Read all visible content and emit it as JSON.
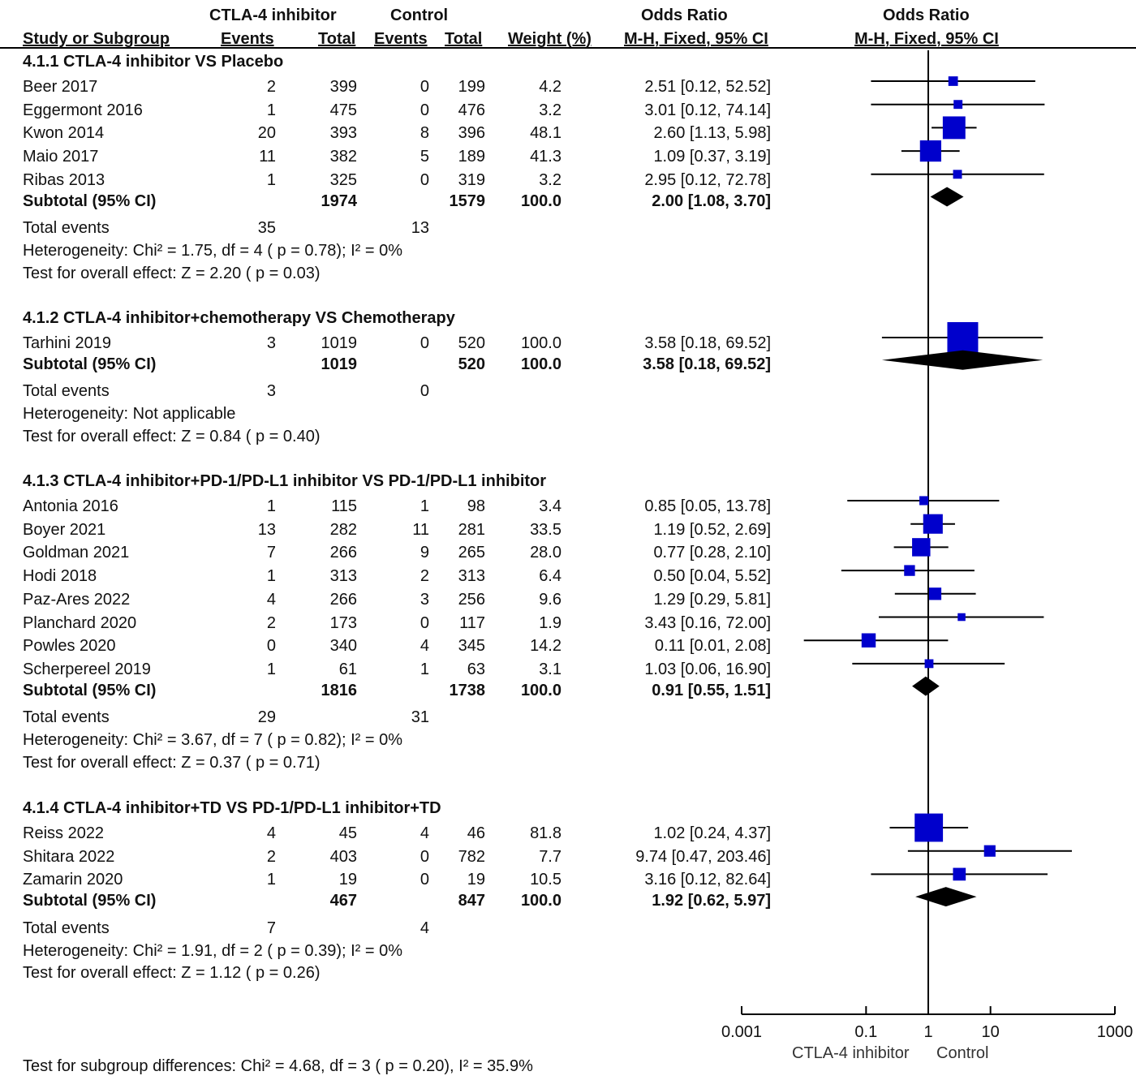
{
  "header": {
    "exp_group": "CTLA-4 inhibitor",
    "ctrl_group": "Control",
    "or_title": "Odds Ratio",
    "or_title_plot": "Odds Ratio",
    "col_study": "Study or Subgroup",
    "col_exp_events": "Events",
    "col_exp_total": "Total",
    "col_ctrl_events": "Events",
    "col_ctrl_total": "Total",
    "col_weight": "Weight (%)",
    "col_method": "M-H, Fixed, 95% CI",
    "col_method_plot": "M-H, Fixed, 95% CI"
  },
  "subgroups": [
    {
      "title": "4.1.1 CTLA-4 inhibitor VS Placebo",
      "studies": [
        {
          "name": "Beer 2017",
          "ee": "2",
          "et": "399",
          "ce": "0",
          "ct": "199",
          "w": "4.2",
          "ci": "2.51 [0.12, 52.52]"
        },
        {
          "name": "Eggermont 2016",
          "ee": "1",
          "et": "475",
          "ce": "0",
          "ct": "476",
          "w": "3.2",
          "ci": "3.01 [0.12, 74.14]"
        },
        {
          "name": "Kwon 2014",
          "ee": "20",
          "et": "393",
          "ce": "8",
          "ct": "396",
          "w": "48.1",
          "ci": "2.60 [1.13, 5.98]"
        },
        {
          "name": "Maio 2017",
          "ee": "11",
          "et": "382",
          "ce": "5",
          "ct": "189",
          "w": "41.3",
          "ci": "1.09 [0.37, 3.19]"
        },
        {
          "name": "Ribas 2013",
          "ee": "1",
          "et": "325",
          "ce": "0",
          "ct": "319",
          "w": "3.2",
          "ci": "2.95 [0.12, 72.78]"
        }
      ],
      "subtotal": {
        "label": "Subtotal (95% CI)",
        "et": "1974",
        "ct": "1579",
        "w": "100.0",
        "ci": "2.00 [1.08, 3.70]"
      },
      "total_events": {
        "label": "Total events",
        "e": "35",
        "c": "13"
      },
      "heterogeneity": "Heterogeneity: Chi² = 1.75, df = 4 ( p = 0.78); I² = 0%",
      "overall": "Test for overall effect: Z = 2.20 ( p = 0.03)"
    },
    {
      "title": "4.1.2 CTLA-4 inhibitor+chemotherapy VS Chemotherapy",
      "studies": [
        {
          "name": "Tarhini 2019",
          "ee": "3",
          "et": "1019",
          "ce": "0",
          "ct": "520",
          "w": "100.0",
          "ci": "3.58 [0.18, 69.52]"
        }
      ],
      "subtotal": {
        "label": "Subtotal (95% CI)",
        "et": "1019",
        "ct": "520",
        "w": "100.0",
        "ci": "3.58 [0.18, 69.52]"
      },
      "total_events": {
        "label": "Total events",
        "e": "3",
        "c": "0"
      },
      "heterogeneity": "Heterogeneity: Not applicable",
      "overall": "Test for overall effect: Z = 0.84 ( p = 0.40)"
    },
    {
      "title": "4.1.3 CTLA-4 inhibitor+PD-1/PD-L1 inhibitor VS PD-1/PD-L1 inhibitor",
      "studies": [
        {
          "name": "Antonia 2016",
          "ee": "1",
          "et": "115",
          "ce": "1",
          "ct": "98",
          "w": "3.4",
          "ci": "0.85 [0.05, 13.78]"
        },
        {
          "name": "Boyer 2021",
          "ee": "13",
          "et": "282",
          "ce": "11",
          "ct": "281",
          "w": "33.5",
          "ci": "1.19 [0.52, 2.69]"
        },
        {
          "name": "Goldman 2021",
          "ee": "7",
          "et": "266",
          "ce": "9",
          "ct": "265",
          "w": "28.0",
          "ci": "0.77 [0.28, 2.10]"
        },
        {
          "name": "Hodi 2018",
          "ee": "1",
          "et": "313",
          "ce": "2",
          "ct": "313",
          "w": "6.4",
          "ci": "0.50 [0.04, 5.52]"
        },
        {
          "name": "Paz-Ares 2022",
          "ee": "4",
          "et": "266",
          "ce": "3",
          "ct": "256",
          "w": "9.6",
          "ci": "1.29 [0.29, 5.81]"
        },
        {
          "name": "Planchard 2020",
          "ee": "2",
          "et": "173",
          "ce": "0",
          "ct": "117",
          "w": "1.9",
          "ci": "3.43 [0.16, 72.00]"
        },
        {
          "name": "Powles 2020",
          "ee": "0",
          "et": "340",
          "ce": "4",
          "ct": "345",
          "w": "14.2",
          "ci": "0.11 [0.01, 2.08]"
        },
        {
          "name": "Scherpereel 2019",
          "ee": "1",
          "et": "61",
          "ce": "1",
          "ct": "63",
          "w": "3.1",
          "ci": "1.03 [0.06, 16.90]"
        }
      ],
      "subtotal": {
        "label": "Subtotal (95% CI)",
        "et": "1816",
        "ct": "1738",
        "w": "100.0",
        "ci": "0.91 [0.55, 1.51]"
      },
      "total_events": {
        "label": "Total events",
        "e": "29",
        "c": "31"
      },
      "heterogeneity": "Heterogeneity: Chi² = 3.67, df = 7 ( p = 0.82); I² = 0%",
      "overall": "Test for overall effect: Z = 0.37 ( p = 0.71)"
    },
    {
      "title": "4.1.4 CTLA-4 inhibitor+TD VS PD-1/PD-L1 inhibitor+TD",
      "studies": [
        {
          "name": "Reiss 2022",
          "ee": "4",
          "et": "45",
          "ce": "4",
          "ct": "46",
          "w": "81.8",
          "ci": "1.02 [0.24, 4.37]"
        },
        {
          "name": "Shitara 2022",
          "ee": "2",
          "et": "403",
          "ce": "0",
          "ct": "782",
          "w": "7.7",
          "ci": "9.74 [0.47, 203.46]"
        },
        {
          "name": "Zamarin 2020",
          "ee": "1",
          "et": "19",
          "ce": "0",
          "ct": "19",
          "w": "10.5",
          "ci": "3.16 [0.12, 82.64]"
        }
      ],
      "subtotal": {
        "label": "Subtotal (95% CI)",
        "et": "467",
        "ct": "847",
        "w": "100.0",
        "ci": "1.92 [0.62, 5.97]"
      },
      "total_events": {
        "label": "Total events",
        "e": "7",
        "c": "4"
      },
      "heterogeneity": "Heterogeneity: Chi² = 1.91, df = 2 ( p = 0.39); I² = 0%",
      "overall": "Test for overall effect: Z = 1.12 ( p = 0.26)"
    }
  ],
  "subgroup_differences": "Test for subgroup differences: Chi² = 4.68, df = 3 ( p = 0.20), I² = 35.9%",
  "axis_labels": {
    "left": "CTLA-4 inhibitor",
    "right": "Control"
  },
  "colors": {
    "study_marker": "#0000cc",
    "summary_diamond": "#000000",
    "lines": "#000000"
  },
  "chart_data": {
    "type": "forest",
    "x_scale": "log",
    "xlim": [
      0.001,
      1000
    ],
    "x_ticks": [
      "0.001",
      "0.1",
      "1",
      "10",
      "1000"
    ],
    "reference_line": 1,
    "groups": [
      {
        "studies": [
          {
            "or": 2.51,
            "lo": 0.12,
            "hi": 52.52,
            "weight": 4.2
          },
          {
            "or": 3.01,
            "lo": 0.12,
            "hi": 74.14,
            "weight": 3.2
          },
          {
            "or": 2.6,
            "lo": 1.13,
            "hi": 5.98,
            "weight": 48.1
          },
          {
            "or": 1.09,
            "lo": 0.37,
            "hi": 3.19,
            "weight": 41.3
          },
          {
            "or": 2.95,
            "lo": 0.12,
            "hi": 72.78,
            "weight": 3.2
          }
        ],
        "subtotal": {
          "or": 2.0,
          "lo": 1.08,
          "hi": 3.7
        }
      },
      {
        "studies": [
          {
            "or": 3.58,
            "lo": 0.18,
            "hi": 69.52,
            "weight": 100.0
          }
        ],
        "subtotal": {
          "or": 3.58,
          "lo": 0.18,
          "hi": 69.52
        }
      },
      {
        "studies": [
          {
            "or": 0.85,
            "lo": 0.05,
            "hi": 13.78,
            "weight": 3.4
          },
          {
            "or": 1.19,
            "lo": 0.52,
            "hi": 2.69,
            "weight": 33.5
          },
          {
            "or": 0.77,
            "lo": 0.28,
            "hi": 2.1,
            "weight": 28.0
          },
          {
            "or": 0.5,
            "lo": 0.04,
            "hi": 5.52,
            "weight": 6.4
          },
          {
            "or": 1.29,
            "lo": 0.29,
            "hi": 5.81,
            "weight": 9.6
          },
          {
            "or": 3.43,
            "lo": 0.16,
            "hi": 72.0,
            "weight": 1.9
          },
          {
            "or": 0.11,
            "lo": 0.01,
            "hi": 2.08,
            "weight": 14.2
          },
          {
            "or": 1.03,
            "lo": 0.06,
            "hi": 16.9,
            "weight": 3.1
          }
        ],
        "subtotal": {
          "or": 0.91,
          "lo": 0.55,
          "hi": 1.51
        }
      },
      {
        "studies": [
          {
            "or": 1.02,
            "lo": 0.24,
            "hi": 4.37,
            "weight": 81.8
          },
          {
            "or": 9.74,
            "lo": 0.47,
            "hi": 203.46,
            "weight": 7.7
          },
          {
            "or": 3.16,
            "lo": 0.12,
            "hi": 82.64,
            "weight": 10.5
          }
        ],
        "subtotal": {
          "or": 1.92,
          "lo": 0.62,
          "hi": 5.97
        }
      }
    ]
  }
}
